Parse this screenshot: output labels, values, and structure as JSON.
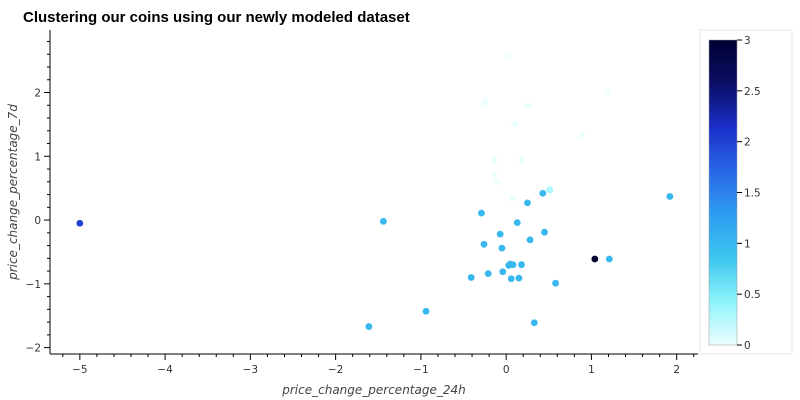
{
  "chart_data": {
    "type": "scatter",
    "title": "Clustering our coins using our newly modeled dataset",
    "xlabel": "price_change_percentage_24h",
    "ylabel": "price_change_percentage_7d",
    "xlim": [
      -5.35,
      2.25
    ],
    "ylim": [
      -2.1,
      2.98
    ],
    "xticks": [
      -5,
      -4,
      -3,
      -2,
      -1,
      0,
      1,
      2
    ],
    "yticks": [
      -2,
      -1,
      0,
      1,
      2
    ],
    "grid": false,
    "colorbar": {
      "label": "",
      "range": [
        0,
        3
      ],
      "ticks": [
        0,
        0.5,
        1,
        1.5,
        2,
        2.5,
        3
      ],
      "colormap": [
        "#ecffff",
        "#8ef3fb",
        "#3cc6ee",
        "#2e9cf0",
        "#2966e6",
        "#1a2fc8",
        "#0b0e66",
        "#000033"
      ]
    },
    "points": [
      {
        "x": 0.01,
        "y": 2.57,
        "c": 0
      },
      {
        "x": 1.19,
        "y": 2.01,
        "c": 0
      },
      {
        "x": -0.25,
        "y": 1.84,
        "c": 0
      },
      {
        "x": 0.26,
        "y": 1.8,
        "c": 0
      },
      {
        "x": 0.1,
        "y": 1.51,
        "c": 0
      },
      {
        "x": 0.89,
        "y": 1.34,
        "c": 0
      },
      {
        "x": -0.13,
        "y": 0.94,
        "c": 0
      },
      {
        "x": 0.18,
        "y": 0.94,
        "c": 0
      },
      {
        "x": -0.14,
        "y": 0.71,
        "c": 0
      },
      {
        "x": -0.11,
        "y": 0.6,
        "c": 0
      },
      {
        "x": 0.51,
        "y": 0.5,
        "c": 0
      },
      {
        "x": 0.08,
        "y": 0.34,
        "c": 0
      },
      {
        "x": 0.51,
        "y": 0.47,
        "c": 0.3
      },
      {
        "x": 0.43,
        "y": 0.42,
        "c": 1
      },
      {
        "x": 1.92,
        "y": 0.37,
        "c": 1
      },
      {
        "x": 0.25,
        "y": 0.27,
        "c": 1
      },
      {
        "x": -0.29,
        "y": 0.11,
        "c": 1
      },
      {
        "x": -5.0,
        "y": -0.05,
        "c": 2
      },
      {
        "x": -1.44,
        "y": -0.02,
        "c": 1
      },
      {
        "x": 0.13,
        "y": -0.04,
        "c": 1
      },
      {
        "x": -0.07,
        "y": -0.22,
        "c": 1
      },
      {
        "x": 0.45,
        "y": -0.19,
        "c": 1
      },
      {
        "x": 0.28,
        "y": -0.31,
        "c": 1
      },
      {
        "x": -0.26,
        "y": -0.38,
        "c": 1
      },
      {
        "x": -0.05,
        "y": -0.44,
        "c": 1
      },
      {
        "x": 1.04,
        "y": -0.61,
        "c": 3
      },
      {
        "x": 1.21,
        "y": -0.61,
        "c": 1
      },
      {
        "x": 0.05,
        "y": -0.69,
        "c": 1
      },
      {
        "x": 0.03,
        "y": -0.71,
        "c": 1
      },
      {
        "x": 0.08,
        "y": -0.7,
        "c": 1
      },
      {
        "x": 0.18,
        "y": -0.7,
        "c": 1
      },
      {
        "x": -0.04,
        "y": -0.81,
        "c": 1
      },
      {
        "x": -0.21,
        "y": -0.84,
        "c": 1
      },
      {
        "x": -0.41,
        "y": -0.9,
        "c": 1
      },
      {
        "x": 0.06,
        "y": -0.92,
        "c": 1
      },
      {
        "x": 0.15,
        "y": -0.91,
        "c": 1
      },
      {
        "x": 0.58,
        "y": -0.99,
        "c": 1
      },
      {
        "x": -0.94,
        "y": -1.43,
        "c": 1
      },
      {
        "x": 0.33,
        "y": -1.61,
        "c": 1
      },
      {
        "x": -1.61,
        "y": -1.67,
        "c": 1
      }
    ]
  }
}
